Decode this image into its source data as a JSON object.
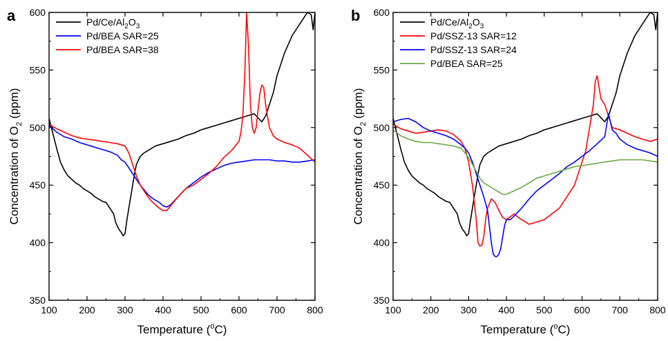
{
  "chart_data": [
    {
      "type": "line",
      "panel_label": "a",
      "xlabel": {
        "main": "Temperature (",
        "sup": "o",
        "tail": "C)"
      },
      "ylabel": {
        "main": "Concentration of O",
        "sub": "2",
        "tail": " (ppm)"
      },
      "xlim": [
        100,
        800
      ],
      "ylim": [
        350,
        600
      ],
      "xticks": [
        "100",
        "200",
        "300",
        "400",
        "500",
        "600",
        "700",
        "800"
      ],
      "yticks": [
        "350",
        "400",
        "450",
        "500",
        "550",
        "600"
      ],
      "grid": false,
      "legend_position": "top-left",
      "series": [
        {
          "name": "Pd/Ce/Al2O3",
          "name_parts": {
            "main": "Pd/Ce/Al",
            "sub1": "2",
            "mid": "O",
            "sub2": "3"
          },
          "color": "#000000",
          "x": [
            100,
            110,
            120,
            130,
            140,
            150,
            160,
            170,
            180,
            190,
            200,
            210,
            220,
            230,
            240,
            250,
            260,
            270,
            275,
            280,
            285,
            290,
            295,
            300,
            305,
            310,
            315,
            320,
            325,
            330,
            340,
            350,
            360,
            370,
            380,
            390,
            400,
            420,
            440,
            460,
            480,
            500,
            520,
            540,
            560,
            580,
            600,
            620,
            640,
            660,
            670,
            680,
            690,
            700,
            720,
            740,
            760,
            770,
            780,
            790,
            795,
            800
          ],
          "y": [
            508,
            495,
            482,
            470,
            463,
            458,
            455,
            452,
            450,
            447,
            445,
            443,
            440,
            438,
            436,
            435,
            430,
            425,
            418,
            414,
            411,
            409,
            406,
            408,
            420,
            430,
            440,
            450,
            460,
            468,
            475,
            478,
            480,
            482,
            484,
            485,
            486,
            488,
            490,
            493,
            495,
            498,
            500,
            502,
            504,
            506,
            508,
            510,
            512,
            505,
            510,
            520,
            530,
            545,
            565,
            580,
            590,
            595,
            600,
            598,
            585,
            600
          ]
        },
        {
          "name": "Pd/BEA SAR=25",
          "color": "#0000ff",
          "x": [
            100,
            120,
            140,
            160,
            180,
            200,
            220,
            240,
            260,
            280,
            290,
            300,
            310,
            320,
            330,
            340,
            350,
            360,
            370,
            380,
            390,
            400,
            410,
            420,
            440,
            460,
            480,
            500,
            520,
            540,
            560,
            580,
            600,
            620,
            640,
            660,
            680,
            700,
            720,
            740,
            760,
            780,
            800
          ],
          "y": [
            502,
            496,
            492,
            490,
            487,
            485,
            483,
            481,
            479,
            476,
            472,
            470,
            465,
            460,
            455,
            450,
            446,
            442,
            439,
            437,
            435,
            432,
            431,
            433,
            440,
            447,
            452,
            457,
            461,
            464,
            467,
            469,
            470,
            471,
            472,
            472,
            472,
            471,
            471,
            470,
            470,
            471,
            472
          ]
        },
        {
          "name": "Pd/BEA SAR=38",
          "color": "#ff0000",
          "x": [
            100,
            120,
            140,
            160,
            180,
            200,
            220,
            240,
            260,
            280,
            290,
            300,
            310,
            320,
            330,
            340,
            350,
            360,
            370,
            380,
            390,
            400,
            410,
            420,
            440,
            460,
            480,
            500,
            520,
            540,
            560,
            580,
            600,
            605,
            610,
            615,
            620,
            625,
            630,
            635,
            640,
            645,
            650,
            655,
            660,
            665,
            670,
            680,
            690,
            700,
            720,
            740,
            760,
            780,
            800
          ],
          "y": [
            503,
            499,
            496,
            493,
            491,
            490,
            489,
            488,
            487,
            486,
            485,
            484,
            478,
            468,
            458,
            450,
            445,
            440,
            436,
            433,
            430,
            428,
            428,
            432,
            440,
            447,
            450,
            455,
            460,
            466,
            474,
            480,
            488,
            496,
            510,
            545,
            600,
            570,
            520,
            500,
            495,
            500,
            515,
            530,
            537,
            535,
            520,
            500,
            493,
            490,
            487,
            485,
            482,
            476,
            470
          ]
        }
      ]
    },
    {
      "type": "line",
      "panel_label": "b",
      "xlabel": {
        "main": "Temperature (",
        "sup": "o",
        "tail": "C)"
      },
      "ylabel": {
        "main": "Concentration of O",
        "sub": "2",
        "tail": " (ppm)"
      },
      "xlim": [
        100,
        800
      ],
      "ylim": [
        350,
        600
      ],
      "xticks": [
        "100",
        "200",
        "300",
        "400",
        "500",
        "600",
        "700",
        "800"
      ],
      "yticks": [
        "350",
        "400",
        "450",
        "500",
        "550",
        "600"
      ],
      "grid": false,
      "legend_position": "top-left",
      "series": [
        {
          "name": "Pd/Ce/Al2O3",
          "name_parts": {
            "main": "Pd/Ce/Al",
            "sub1": "2",
            "mid": "O",
            "sub2": "3"
          },
          "color": "#000000",
          "x": [
            100,
            110,
            120,
            130,
            140,
            150,
            160,
            170,
            180,
            190,
            200,
            210,
            220,
            230,
            240,
            250,
            260,
            270,
            275,
            280,
            285,
            290,
            295,
            300,
            305,
            310,
            315,
            320,
            325,
            330,
            340,
            350,
            360,
            370,
            380,
            390,
            400,
            420,
            440,
            460,
            480,
            500,
            520,
            540,
            560,
            580,
            600,
            620,
            640,
            660,
            670,
            680,
            690,
            700,
            720,
            740,
            760,
            770,
            780,
            790,
            795,
            800
          ],
          "y": [
            508,
            495,
            482,
            470,
            463,
            458,
            455,
            452,
            450,
            447,
            445,
            443,
            440,
            438,
            436,
            435,
            430,
            425,
            418,
            414,
            411,
            409,
            406,
            408,
            420,
            430,
            440,
            450,
            460,
            468,
            475,
            478,
            480,
            482,
            484,
            485,
            486,
            488,
            490,
            493,
            495,
            498,
            500,
            502,
            504,
            506,
            508,
            510,
            512,
            505,
            510,
            520,
            530,
            545,
            565,
            580,
            590,
            595,
            600,
            598,
            585,
            600
          ]
        },
        {
          "name": "Pd/SSZ-13 SAR=12",
          "color": "#ff0000",
          "x": [
            100,
            120,
            140,
            160,
            180,
            200,
            220,
            240,
            260,
            280,
            290,
            300,
            310,
            320,
            325,
            330,
            335,
            340,
            345,
            350,
            360,
            370,
            380,
            390,
            400,
            420,
            440,
            460,
            480,
            500,
            520,
            540,
            560,
            580,
            600,
            610,
            620,
            630,
            635,
            640,
            650,
            660,
            670,
            680,
            700,
            720,
            740,
            760,
            780,
            800
          ],
          "y": [
            503,
            499,
            497,
            495,
            496,
            497,
            498,
            497,
            494,
            488,
            482,
            470,
            450,
            420,
            400,
            397,
            398,
            405,
            420,
            430,
            438,
            435,
            428,
            422,
            420,
            425,
            420,
            416,
            418,
            420,
            425,
            430,
            440,
            450,
            470,
            480,
            500,
            520,
            540,
            545,
            525,
            520,
            510,
            500,
            498,
            495,
            492,
            490,
            488,
            490
          ]
        },
        {
          "name": "Pd/SSZ-13 SAR=24",
          "color": "#0000ff",
          "x": [
            100,
            120,
            140,
            160,
            180,
            200,
            220,
            240,
            260,
            280,
            290,
            300,
            310,
            320,
            330,
            340,
            350,
            360,
            365,
            370,
            375,
            380,
            385,
            390,
            395,
            400,
            410,
            420,
            440,
            460,
            480,
            500,
            520,
            540,
            560,
            580,
            600,
            620,
            640,
            660,
            670,
            680,
            690,
            700,
            720,
            740,
            760,
            780,
            800
          ],
          "y": [
            505,
            507,
            508,
            505,
            500,
            497,
            495,
            493,
            490,
            485,
            482,
            478,
            470,
            460,
            450,
            440,
            428,
            400,
            390,
            388,
            388,
            390,
            395,
            405,
            415,
            420,
            420,
            423,
            430,
            438,
            445,
            450,
            455,
            460,
            466,
            470,
            475,
            480,
            486,
            492,
            512,
            498,
            495,
            490,
            485,
            482,
            480,
            478,
            475
          ]
        },
        {
          "name": "Pd/BEA SAR=25",
          "color": "#66aa44",
          "x": [
            100,
            120,
            140,
            160,
            180,
            200,
            220,
            240,
            260,
            280,
            290,
            300,
            310,
            320,
            330,
            340,
            350,
            360,
            370,
            380,
            390,
            400,
            420,
            440,
            460,
            480,
            500,
            520,
            540,
            560,
            580,
            600,
            620,
            640,
            660,
            680,
            700,
            720,
            740,
            760,
            780,
            800
          ],
          "y": [
            498,
            493,
            490,
            488,
            487,
            487,
            486,
            485,
            484,
            482,
            478,
            474,
            468,
            462,
            456,
            452,
            450,
            448,
            446,
            444,
            442,
            442,
            445,
            448,
            452,
            456,
            458,
            460,
            462,
            464,
            466,
            467,
            468,
            469,
            470,
            471,
            472,
            472,
            472,
            472,
            471,
            470
          ]
        }
      ]
    }
  ]
}
